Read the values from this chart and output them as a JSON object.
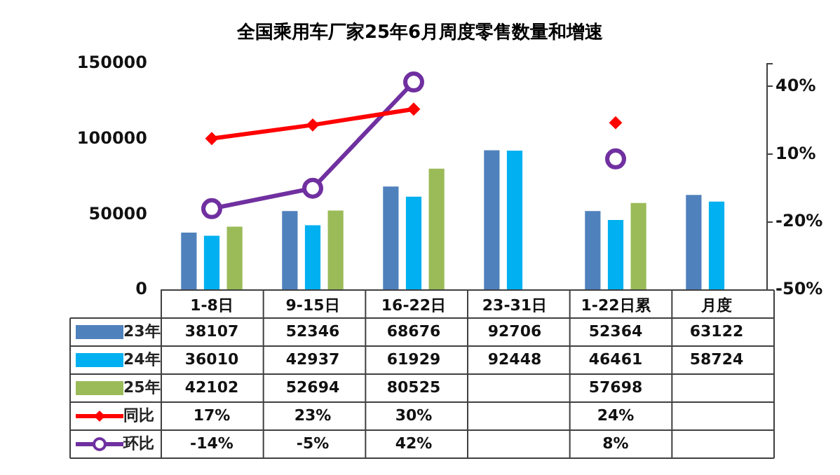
{
  "chart_data": {
    "type": "bar",
    "title": "全国乘用车厂家25年6月周度零售数量和增速",
    "categories": [
      "1-8日",
      "9-15日",
      "16-22日",
      "23-31日",
      "1-22日累",
      "月度"
    ],
    "ylim": [
      0,
      150000
    ],
    "yticks": [
      0,
      50000,
      100000,
      150000
    ],
    "y2lim": [
      -50,
      50
    ],
    "y2ticks": [
      {
        "value": -50,
        "label": "-50%"
      },
      {
        "value": -20,
        "label": "-20%"
      },
      {
        "value": 10,
        "label": "10%"
      },
      {
        "value": 40,
        "label": "40%"
      },
      {
        "value": 50,
        "label": null
      }
    ],
    "grid": false,
    "legend": "bottom",
    "data_labels": true,
    "series": [
      {
        "name": "23年",
        "color": "#4f81bd",
        "values": [
          38107,
          52346,
          68676,
          92706,
          52364,
          63122
        ]
      },
      {
        "name": "24年",
        "color": "#00b0f0",
        "values": [
          36010,
          42937,
          61929,
          92448,
          46461,
          58724
        ]
      },
      {
        "name": "25年",
        "color": "#9bbb59",
        "values": [
          42102,
          52694,
          80525,
          null,
          57698,
          null
        ]
      },
      {
        "name": "同比",
        "type": "line",
        "axis": "y2",
        "color": "#ff0000",
        "marker": "diamond",
        "line_style": "solid",
        "values": [
          17,
          23,
          30,
          null,
          24,
          null
        ],
        "value_labels": [
          "17%",
          "23%",
          "30%",
          null,
          "24%",
          null
        ]
      },
      {
        "name": "环比",
        "type": "line",
        "axis": "y2",
        "color": "#7030a0",
        "marker": "circle",
        "line_style": "solid",
        "values": [
          -14,
          -5,
          42,
          null,
          8,
          null
        ],
        "value_labels": [
          "-14%",
          "-5%",
          "42%",
          null,
          "8%",
          null
        ]
      }
    ]
  }
}
